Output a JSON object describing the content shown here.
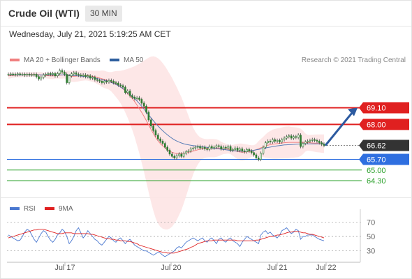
{
  "header": {
    "title": "Crude Oil (WTI)",
    "timeframe": "30 MIN",
    "date": "Wednesday, July 21, 2021 5:19:25 AM CET"
  },
  "legend": {
    "items": [
      {
        "label": "MA 20 + Bollinger Bands",
        "color": "#f08080"
      },
      {
        "label": "MA 50",
        "color": "#2e5e9e"
      }
    ],
    "credit": "Research © 2021 Trading Central"
  },
  "rsi_legend": {
    "items": [
      {
        "label": "RSI",
        "color": "#4a78d0"
      },
      {
        "label": "9MA",
        "color": "#e02020"
      }
    ]
  },
  "chart_data": [
    {
      "type": "candlestick",
      "title": "Crude Oil (WTI)",
      "ylim": [
        63.2,
        71.6
      ],
      "x_ticks": [
        "Jul 17",
        "Jul 20",
        "Jul 21",
        "Jul 22"
      ],
      "levels": [
        {
          "value": 69.1,
          "label": "69.10",
          "color": "#e02020",
          "style": "resistance"
        },
        {
          "value": 68.0,
          "label": "68.00",
          "color": "#e02020",
          "style": "resistance"
        },
        {
          "value": 66.62,
          "label": "66.62",
          "color": "#333333",
          "style": "last-price"
        },
        {
          "value": 65.7,
          "label": "65.70",
          "color": "#2f6fe0",
          "style": "pivot"
        },
        {
          "value": 65.0,
          "label": "65.00",
          "color": "#2aa02a",
          "style": "support"
        },
        {
          "value": 64.3,
          "label": "64.30",
          "color": "#2aa02a",
          "style": "support"
        }
      ],
      "close": [
        71.3,
        71.32,
        71.3,
        71.28,
        71.33,
        71.3,
        71.3,
        71.25,
        71.3,
        71.27,
        71.28,
        71.3,
        71.15,
        71.0,
        71.1,
        71.25,
        71.3,
        71.35,
        71.3,
        71.35,
        71.2,
        71.35,
        71.55,
        71.45,
        71.3,
        70.75,
        71.2,
        71.33,
        71.4,
        71.3,
        71.25,
        71.2,
        71.25,
        71.15,
        71.2,
        71.05,
        71.1,
        70.95,
        70.9,
        70.85,
        70.75,
        70.85,
        70.8,
        70.9,
        70.85,
        70.75,
        70.72,
        70.6,
        70.55,
        70.45,
        70.1,
        70.2,
        69.9,
        69.8,
        69.7,
        69.75,
        69.65,
        69.4,
        69.2,
        68.8,
        68.3,
        67.9,
        67.6,
        67.3,
        67.05,
        66.9,
        66.75,
        66.5,
        66.3,
        66.05,
        65.9,
        65.8,
        65.95,
        66.05,
        65.9,
        66.1,
        66.2,
        66.25,
        66.4,
        66.45,
        66.5,
        66.55,
        66.45,
        66.5,
        66.4,
        66.35,
        66.55,
        66.45,
        66.5,
        66.6,
        66.55,
        66.4,
        66.5,
        66.45,
        66.55,
        66.3,
        66.35,
        66.45,
        66.3,
        66.4,
        66.25,
        66.2,
        66.35,
        66.25,
        66.15,
        66.0,
        65.8,
        65.7,
        66.1,
        66.5,
        66.8,
        66.9,
        66.85,
        67.0,
        66.9,
        66.95,
        66.85,
        67.0,
        67.1,
        67.2,
        67.25,
        67.1,
        67.2,
        67.15,
        67.3,
        66.55,
        66.75,
        66.85,
        66.9,
        66.95,
        67.0,
        66.95,
        66.9,
        66.8,
        66.7,
        66.62
      ],
      "series": [
        {
          "name": "MA 20 + Bollinger Bands",
          "values": [
            71.2,
            71.22,
            71.23,
            71.24,
            71.25,
            71.26,
            71.27,
            71.28,
            71.28,
            71.29,
            71.29,
            71.29,
            71.29,
            71.28,
            71.26,
            71.24,
            71.22,
            71.21,
            71.2,
            71.2,
            71.21,
            71.22,
            71.24,
            71.25,
            71.26,
            71.22,
            71.19,
            71.17,
            71.17,
            71.18,
            71.19,
            71.21,
            71.22,
            71.22,
            71.21,
            71.19,
            71.17,
            71.14,
            71.1,
            71.06,
            71.01,
            70.97,
            70.92,
            70.87,
            70.81,
            70.74,
            70.66,
            70.57,
            70.46,
            70.34,
            70.2,
            70.05,
            69.88,
            69.7,
            69.5,
            69.28,
            69.05,
            68.8,
            68.54,
            68.26,
            67.97,
            67.68,
            67.4,
            67.14,
            66.92,
            66.74,
            66.59,
            66.46,
            66.34,
            66.24,
            66.17,
            66.12,
            66.09,
            66.08,
            66.08,
            66.1,
            66.13,
            66.17,
            66.21,
            66.25,
            66.29,
            66.33,
            66.37,
            66.4,
            66.42,
            66.43,
            66.44,
            66.44,
            66.44,
            66.44,
            66.44,
            66.43,
            66.42,
            66.4,
            66.37,
            66.34,
            66.3,
            66.26,
            66.22,
            66.19,
            66.18,
            66.18,
            66.2,
            66.22,
            66.25,
            66.29,
            66.34,
            66.4,
            66.46,
            66.52,
            66.58,
            66.63,
            66.67,
            66.7,
            66.72,
            66.74,
            66.76,
            66.78,
            66.8,
            66.81,
            66.82,
            66.82,
            66.82,
            66.82,
            66.82,
            66.82,
            66.82,
            66.81,
            66.8,
            66.79,
            66.78,
            66.77,
            66.76,
            66.75,
            66.74,
            66.73
          ]
        },
        {
          "name": "MA 50",
          "values": [
            71.26,
            71.26,
            71.26,
            71.26,
            71.26,
            71.26,
            71.26,
            71.26,
            71.26,
            71.26,
            71.26,
            71.26,
            71.26,
            71.26,
            71.26,
            71.26,
            71.26,
            71.26,
            71.26,
            71.26,
            71.26,
            71.26,
            71.26,
            71.26,
            71.26,
            71.25,
            71.24,
            71.23,
            71.22,
            71.21,
            71.2,
            71.18,
            71.17,
            71.15,
            71.13,
            71.11,
            71.08,
            71.05,
            71.02,
            70.99,
            70.95,
            70.91,
            70.87,
            70.82,
            70.76,
            70.7,
            70.63,
            70.55,
            70.46,
            70.36,
            70.25,
            70.13,
            70.0,
            69.86,
            69.71,
            69.55,
            69.38,
            69.2,
            69.01,
            68.82,
            68.63,
            68.44,
            68.25,
            68.07,
            67.9,
            67.74,
            67.59,
            67.45,
            67.32,
            67.2,
            67.09,
            66.99,
            66.91,
            66.84,
            66.78,
            66.73,
            66.69,
            66.66,
            66.63,
            66.61,
            66.59,
            66.57,
            66.55,
            66.53,
            66.51,
            66.49,
            66.47,
            66.45,
            66.43,
            66.41,
            66.39,
            66.37,
            66.35,
            66.33,
            66.31,
            66.29,
            66.27,
            66.26,
            66.25,
            66.24,
            66.24,
            66.24,
            66.25,
            66.26,
            66.28,
            66.3,
            66.33,
            66.36,
            66.39,
            66.42,
            66.45,
            66.48,
            66.51,
            66.54,
            66.57,
            66.59,
            66.61,
            66.63,
            66.65,
            66.66,
            66.67,
            66.68,
            66.69,
            66.7,
            66.71,
            66.71,
            66.72,
            66.72,
            66.72,
            66.72,
            66.72,
            66.72,
            66.72,
            66.72,
            66.72,
            66.72
          ]
        }
      ],
      "projection": {
        "from": 66.62,
        "to": 69.1
      }
    },
    {
      "type": "line",
      "ylim": [
        20,
        80
      ],
      "y_ticks": [
        "70",
        "50",
        "30"
      ],
      "series": [
        {
          "name": "RSI",
          "values": [
            52,
            50,
            48,
            46,
            44,
            45,
            50,
            56,
            60,
            58,
            52,
            46,
            42,
            48,
            54,
            58,
            56,
            50,
            45,
            42,
            46,
            52,
            55,
            60,
            57,
            50,
            40,
            44,
            50,
            58,
            62,
            55,
            48,
            52,
            58,
            54,
            50,
            46,
            44,
            40,
            38,
            42,
            46,
            50,
            48,
            44,
            42,
            46,
            48,
            44,
            40,
            44,
            46,
            42,
            38,
            36,
            34,
            32,
            30,
            30,
            28,
            26,
            24,
            26,
            28,
            27,
            24,
            22,
            24,
            26,
            28,
            30,
            34,
            36,
            34,
            38,
            42,
            44,
            46,
            48,
            46,
            44,
            46,
            48,
            44,
            42,
            46,
            48,
            44,
            40,
            46,
            48,
            44,
            42,
            46,
            48,
            44,
            42,
            40,
            36,
            42,
            46,
            50,
            48,
            46,
            44,
            42,
            40,
            52,
            56,
            58,
            54,
            56,
            52,
            50,
            48,
            52,
            58,
            60,
            62,
            58,
            54,
            56,
            60,
            58,
            46,
            50,
            50,
            52,
            52,
            52,
            50,
            48,
            46,
            45,
            44
          ]
        },
        {
          "name": "9MA",
          "values": [
            48,
            49,
            50,
            51,
            52,
            53,
            54,
            55,
            56,
            57,
            58,
            59,
            59,
            60,
            60,
            60,
            59,
            58,
            57,
            56,
            55,
            54,
            54,
            54,
            55,
            55,
            55,
            55,
            54,
            54,
            54,
            54,
            54,
            54,
            54,
            53,
            53,
            52,
            51,
            50,
            49,
            48,
            47,
            47,
            46,
            46,
            45,
            45,
            44,
            44,
            44,
            43,
            43,
            42,
            41,
            40,
            38,
            37,
            36,
            35,
            34,
            33,
            32,
            31,
            30,
            29,
            28,
            28,
            27,
            27,
            27,
            27,
            28,
            29,
            30,
            31,
            32,
            33,
            35,
            36,
            38,
            40,
            41,
            42,
            43,
            44,
            44,
            44,
            45,
            45,
            45,
            45,
            45,
            45,
            45,
            45,
            45,
            45,
            44,
            44,
            44,
            44,
            44,
            44,
            44,
            44,
            45,
            45,
            46,
            47,
            48,
            49,
            50,
            50,
            51,
            52,
            52,
            53,
            54,
            55,
            56,
            56,
            57,
            57,
            57,
            56,
            55,
            55,
            54,
            53,
            53,
            52,
            51,
            50,
            49,
            48
          ]
        }
      ]
    }
  ]
}
